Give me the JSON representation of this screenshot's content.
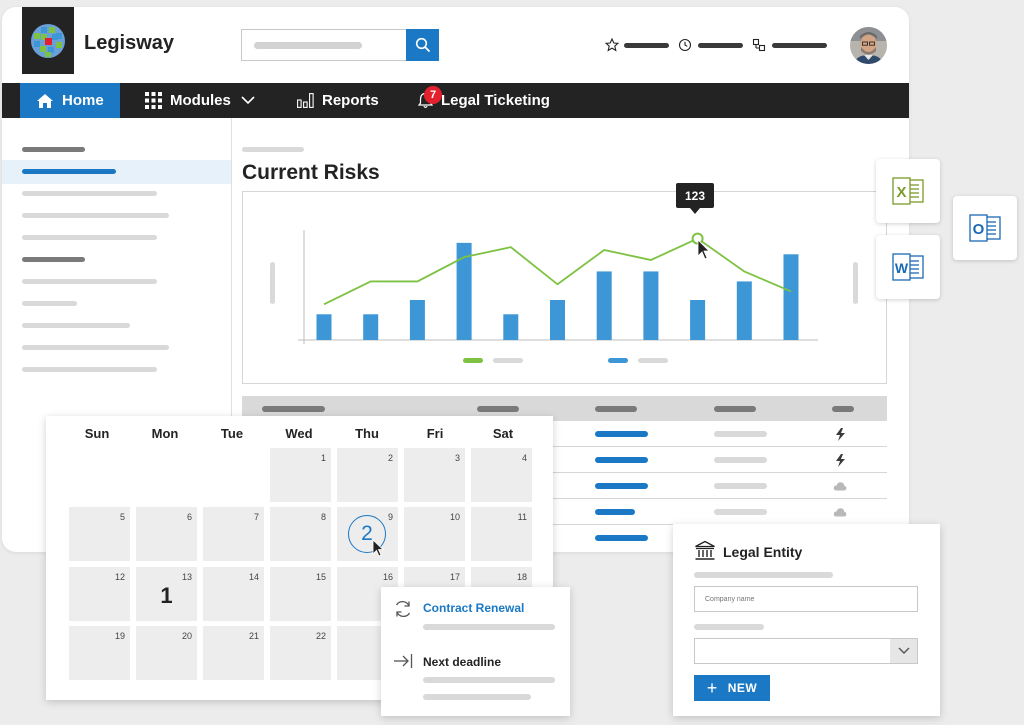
{
  "app": {
    "name": "Legisway"
  },
  "nav": {
    "home": "Home",
    "modules": "Modules",
    "reports": "Reports",
    "ticketing": "Legal Ticketing",
    "ticketing_badge": "7"
  },
  "main": {
    "title": "Current Risks"
  },
  "chart_data": {
    "type": "bar",
    "bars": [
      18,
      18,
      28,
      68,
      18,
      28,
      48,
      48,
      28,
      41,
      60
    ],
    "line": [
      25,
      41,
      41,
      58,
      65,
      39,
      63,
      56,
      71,
      48,
      34
    ],
    "tooltip": "123",
    "legend_colors": [
      "#7dc242",
      "#3d96d6"
    ]
  },
  "calendar": {
    "days": [
      "Sun",
      "Mon",
      "Tue",
      "Wed",
      "Thu",
      "Fri",
      "Sat"
    ],
    "weeks": [
      [
        "",
        "",
        "",
        "1",
        "2",
        "3",
        "4"
      ],
      [
        "5",
        "6",
        "7",
        "8",
        "9",
        "10",
        "11"
      ],
      [
        "12",
        "13",
        "14",
        "15",
        "16",
        "17",
        "18"
      ],
      [
        "19",
        "20",
        "21",
        "22",
        "",
        "",
        ""
      ]
    ],
    "mon_13_count": "1",
    "thu_9_count": "2"
  },
  "events": {
    "contract_renewal": "Contract Renewal",
    "next_deadline": "Next deadline"
  },
  "entity": {
    "title": "Legal Entity",
    "company_placeholder": "Company name",
    "new_button": "NEW"
  },
  "colors": {
    "accent": "#1b78c4",
    "nav_bg": "#232323",
    "green": "#7dc242",
    "bar_blue": "#3d96d6"
  }
}
